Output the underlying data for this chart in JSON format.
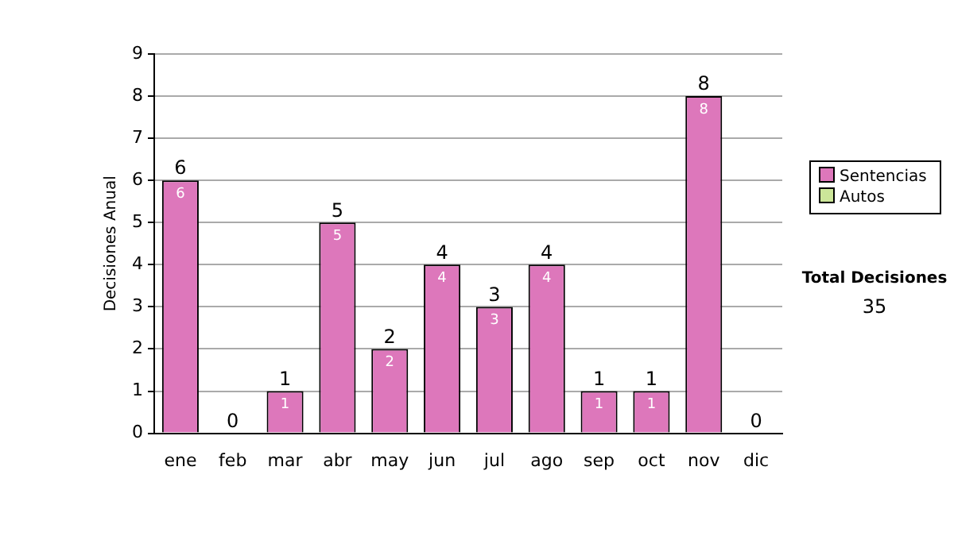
{
  "chart_data": {
    "type": "bar",
    "stacked": true,
    "ylabel": "Decisiones Anual",
    "categories": [
      "ene",
      "feb",
      "mar",
      "abr",
      "may",
      "jun",
      "jul",
      "ago",
      "sep",
      "oct",
      "nov",
      "dic"
    ],
    "series": [
      {
        "name": "Sentencias",
        "color": "#dd77bb",
        "values": [
          6,
          0,
          1,
          5,
          2,
          4,
          3,
          4,
          1,
          1,
          8,
          0
        ],
        "value_labels": [
          "6",
          null,
          "1",
          "5",
          "2",
          "4",
          "3",
          "4",
          "1",
          "1",
          "8",
          null
        ]
      },
      {
        "name": "Autos",
        "color": "#cce699",
        "values": [
          0,
          0,
          0,
          0,
          0,
          0,
          0,
          0,
          0,
          0,
          0,
          0
        ]
      }
    ],
    "totals": [
      "6",
      "0",
      "1",
      "5",
      "2",
      "4",
      "3",
      "4",
      "1",
      "1",
      "8",
      "0"
    ],
    "ylim": [
      0,
      9
    ],
    "yticks": [
      0,
      1,
      2,
      3,
      4,
      5,
      6,
      7,
      8,
      9
    ],
    "grid": "y",
    "legend": "right",
    "annotations": [
      "Total Decisiones",
      "35"
    ]
  }
}
